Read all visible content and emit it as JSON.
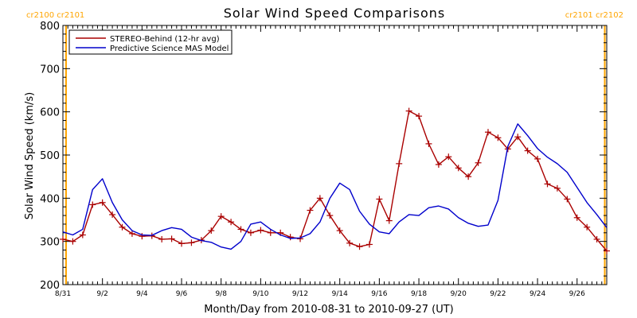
{
  "chart_data": {
    "type": "line",
    "title": "Solar Wind Speed Comparisons",
    "xlabel": "Month/Day from 2010-08-31 to 2010-09-27 (UT)",
    "ylabel": "Solar Wind Speed (km/s)",
    "xlim": [
      0,
      27.5
    ],
    "ylim": [
      200,
      800
    ],
    "yticks": [
      200,
      300,
      400,
      500,
      600,
      700,
      800
    ],
    "xticks": [
      {
        "x": 0,
        "label": "8/31"
      },
      {
        "x": 2,
        "label": "9/2"
      },
      {
        "x": 4,
        "label": "9/4"
      },
      {
        "x": 6,
        "label": "9/6"
      },
      {
        "x": 8,
        "label": "9/8"
      },
      {
        "x": 10,
        "label": "9/10"
      },
      {
        "x": 12,
        "label": "9/12"
      },
      {
        "x": 14,
        "label": "9/14"
      },
      {
        "x": 16,
        "label": "9/16"
      },
      {
        "x": 18,
        "label": "9/18"
      },
      {
        "x": 20,
        "label": "9/20"
      },
      {
        "x": 22,
        "label": "9/22"
      },
      {
        "x": 24,
        "label": "9/24"
      },
      {
        "x": 26,
        "label": "9/26"
      }
    ],
    "x_minor_ticks_per_day": 4,
    "y_minor_step": 20,
    "grid": false,
    "legend_position": "top-left",
    "rotation_markers": [
      {
        "x": 0.16,
        "label": "cr2100 cr2101",
        "label_align": "left"
      },
      {
        "x": 27.4,
        "label": "cr2101 cr2102",
        "label_align": "right"
      }
    ],
    "marker_color": "#ffa500",
    "series": [
      {
        "name": "STEREO-Behind (12-hr avg)",
        "color": "#aa0000",
        "marker": "plus",
        "x": [
          0,
          0.5,
          1,
          1.5,
          2,
          2.5,
          3,
          3.5,
          4,
          4.5,
          5,
          5.5,
          6,
          6.5,
          7,
          7.5,
          8,
          8.5,
          9,
          9.5,
          10,
          10.5,
          11,
          11.5,
          12,
          12.5,
          13,
          13.5,
          14,
          14.5,
          15,
          15.5,
          16,
          16.5,
          17,
          17.5,
          18,
          18.5,
          19,
          19.5,
          20,
          20.5,
          21,
          21.5,
          22,
          22.5,
          23,
          23.5,
          24,
          24.5,
          25,
          25.5,
          26,
          26.5,
          27,
          27.5
        ],
        "values": [
          305,
          300,
          315,
          385,
          390,
          362,
          333,
          318,
          312,
          313,
          305,
          306,
          295,
          297,
          303,
          325,
          358,
          345,
          328,
          320,
          326,
          320,
          320,
          310,
          306,
          372,
          400,
          360,
          325,
          296,
          288,
          293,
          398,
          348,
          480,
          602,
          590,
          526,
          478,
          496,
          470,
          450,
          482,
          553,
          540,
          514,
          542,
          510,
          491,
          433,
          423,
          398,
          355,
          333,
          305,
          278
        ]
      },
      {
        "name": "Predictive Science MAS Model",
        "color": "#0000cc",
        "x": [
          0,
          0.5,
          1,
          1.5,
          2,
          2.5,
          3,
          3.5,
          4,
          4.5,
          5,
          5.5,
          6,
          6.5,
          7,
          7.5,
          8,
          8.5,
          9,
          9.5,
          10,
          10.5,
          11,
          11.5,
          12,
          12.5,
          13,
          13.5,
          14,
          14.5,
          15,
          15.5,
          16,
          16.5,
          17,
          17.5,
          18,
          18.5,
          19,
          19.5,
          20,
          20.5,
          21,
          21.5,
          22,
          22.5,
          23,
          23.5,
          24,
          24.5,
          25,
          25.5,
          26,
          26.5,
          27,
          27.5
        ],
        "values": [
          322,
          315,
          328,
          420,
          445,
          390,
          350,
          325,
          315,
          314,
          325,
          332,
          328,
          310,
          302,
          298,
          287,
          282,
          300,
          340,
          345,
          328,
          315,
          307,
          308,
          318,
          345,
          400,
          435,
          420,
          370,
          340,
          322,
          318,
          345,
          362,
          360,
          378,
          382,
          375,
          355,
          342,
          335,
          338,
          395,
          520,
          572,
          545,
          515,
          495,
          480,
          460,
          425,
          390,
          362,
          332
        ]
      }
    ]
  }
}
